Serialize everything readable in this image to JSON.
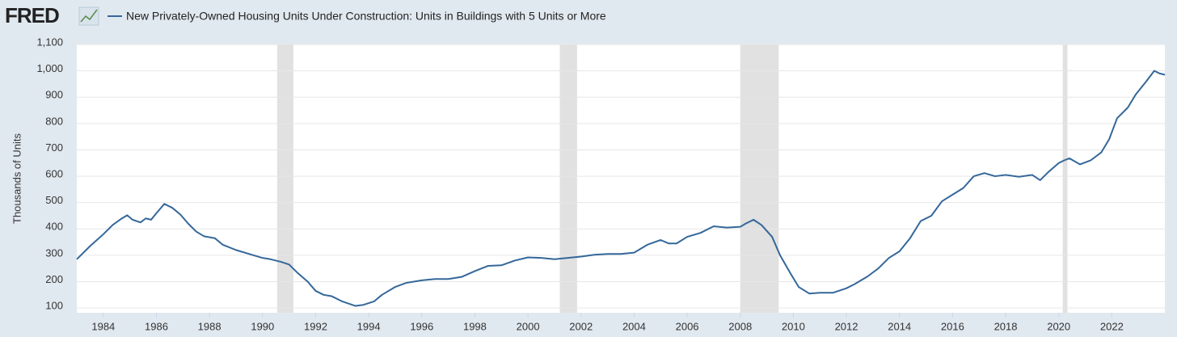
{
  "chart_data": {
    "type": "line",
    "logo": "FRED",
    "title": "New Privately-Owned Housing Units Under Construction: Units in Buildings with 5 Units or More",
    "y_label": "Thousands of Units",
    "xlim": [
      1983.0,
      2024.0
    ],
    "xticks": [
      1984,
      1986,
      1988,
      1990,
      1992,
      1994,
      1996,
      1998,
      2000,
      2002,
      2004,
      2006,
      2008,
      2010,
      2012,
      2014,
      2016,
      2018,
      2020,
      2022
    ],
    "ylim": [
      82,
      1100
    ],
    "yticks": [
      100,
      200,
      300,
      400,
      500,
      600,
      700,
      800,
      900,
      {
        "value": 1000,
        "label": "1,000"
      },
      {
        "value": 1100,
        "label": "1,100"
      }
    ],
    "grid": true,
    "recessions": [
      [
        1990.55,
        1991.16
      ],
      [
        2001.2,
        2001.85
      ],
      [
        2008.0,
        2009.45
      ],
      [
        2020.15,
        2020.33
      ]
    ],
    "recession_color": "#e1e1e1",
    "series": [
      {
        "name": "New Privately-Owned Housing Units Under Construction: Units in Buildings with 5 Units or More",
        "color": "#34679a",
        "x": [
          1983.0,
          1983.5,
          1984.0,
          1984.35,
          1984.7,
          1984.9,
          1985.1,
          1985.4,
          1985.6,
          1985.8,
          1986.0,
          1986.3,
          1986.6,
          1986.9,
          1987.2,
          1987.5,
          1987.8,
          1988.2,
          1988.5,
          1989.0,
          1989.5,
          1990.0,
          1990.3,
          1990.7,
          1991.0,
          1991.3,
          1991.7,
          1992.0,
          1992.3,
          1992.6,
          1993.0,
          1993.5,
          1993.8,
          1994.2,
          1994.5,
          1995.0,
          1995.4,
          1996.0,
          1996.5,
          1997.0,
          1997.5,
          1998.0,
          1998.5,
          1999.0,
          1999.5,
          2000.0,
          2000.5,
          2001.0,
          2001.5,
          2002.0,
          2002.5,
          2003.0,
          2003.5,
          2004.0,
          2004.5,
          2005.0,
          2005.3,
          2005.6,
          2006.0,
          2006.5,
          2007.0,
          2007.5,
          2008.0,
          2008.2,
          2008.5,
          2008.8,
          2009.2,
          2009.5,
          2009.9,
          2010.2,
          2010.6,
          2011.0,
          2011.5,
          2012.0,
          2012.3,
          2012.8,
          2013.2,
          2013.6,
          2014.0,
          2014.4,
          2014.8,
          2015.2,
          2015.6,
          2016.0,
          2016.4,
          2016.8,
          2017.2,
          2017.6,
          2018.0,
          2018.5,
          2019.0,
          2019.3,
          2019.6,
          2020.0,
          2020.2,
          2020.4,
          2020.8,
          2021.2,
          2021.6,
          2021.9,
          2022.2,
          2022.6,
          2022.9,
          2023.3,
          2023.6,
          2023.8,
          2024.0
        ],
        "values": [
          285,
          335,
          380,
          415,
          440,
          452,
          435,
          425,
          440,
          435,
          460,
          495,
          480,
          455,
          420,
          390,
          372,
          365,
          340,
          320,
          305,
          290,
          285,
          275,
          265,
          235,
          200,
          165,
          150,
          145,
          125,
          108,
          112,
          125,
          150,
          180,
          195,
          205,
          210,
          210,
          218,
          240,
          260,
          262,
          280,
          292,
          290,
          285,
          290,
          295,
          302,
          305,
          305,
          310,
          340,
          358,
          345,
          345,
          370,
          385,
          410,
          405,
          408,
          420,
          435,
          415,
          370,
          300,
          230,
          180,
          155,
          158,
          158,
          175,
          190,
          220,
          250,
          290,
          315,
          365,
          430,
          450,
          505,
          530,
          555,
          600,
          612,
          600,
          605,
          598,
          605,
          585,
          615,
          650,
          660,
          668,
          645,
          660,
          690,
          740,
          820,
          860,
          910,
          960,
          1000,
          990,
          985
        ]
      }
    ]
  }
}
